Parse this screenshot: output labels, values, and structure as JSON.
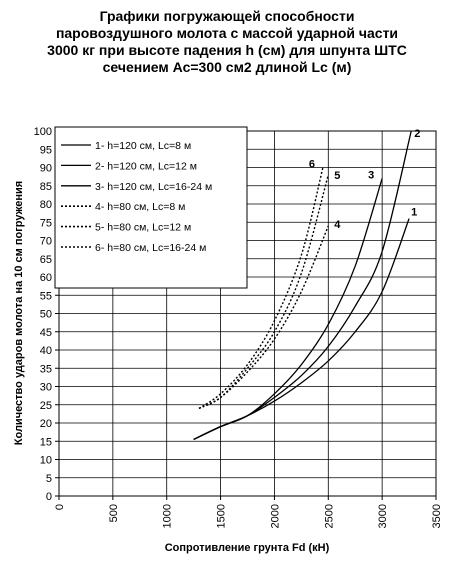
{
  "chart_data": {
    "type": "line",
    "title_lines": [
      "Графики погружающей способности",
      "паровоздушного молота с массой ударной части",
      "3000 кг при высоте падения h (см) для шпунта ШТС",
      "сечением Ас=300 см2 длиной Lc (м)"
    ],
    "xlabel": "Сопротивление грунта Fd (кН)",
    "ylabel": "Количество ударов молота на 10 см погружения",
    "xlim": [
      0,
      3500
    ],
    "ylim": [
      0,
      100
    ],
    "x_ticks": [
      "0",
      "500",
      "1000",
      "1500",
      "2000",
      "2500",
      "3000",
      "3500"
    ],
    "y_ticks": [
      "0",
      "5",
      "10",
      "15",
      "20",
      "25",
      "30",
      "35",
      "40",
      "45",
      "50",
      "55",
      "60",
      "65",
      "70",
      "75",
      "80",
      "85",
      "90",
      "95",
      "100"
    ],
    "grid": true,
    "legend_position": "top-left",
    "series": [
      {
        "name": "1- h=120 см, Lc=8 м",
        "end_label": "1",
        "style": "solid",
        "x": [
          1250,
          1500,
          1750,
          2000,
          2250,
          2500,
          2750,
          3000,
          3250
        ],
        "y": [
          15.5,
          19,
          22,
          26,
          31,
          37,
          45,
          56,
          76
        ]
      },
      {
        "name": "2- h=120 см, Lc=12 м",
        "end_label": "2",
        "style": "solid",
        "x": [
          1250,
          1500,
          1750,
          2000,
          2250,
          2500,
          2750,
          3000,
          3270
        ],
        "y": [
          15.5,
          19,
          22,
          27,
          33,
          41,
          52,
          67,
          100
        ]
      },
      {
        "name": "3- h=120 см, Lc=16-24 м",
        "end_label": "3",
        "style": "solid",
        "x": [
          1250,
          1500,
          1750,
          2000,
          2250,
          2500,
          2750,
          3000
        ],
        "y": [
          15.5,
          19,
          22,
          28,
          36,
          47,
          63,
          87
        ]
      },
      {
        "name": "4- h=80 см, Lc=8 м",
        "end_label": "4",
        "style": "dotted",
        "x": [
          1300,
          1500,
          1750,
          2000,
          2250,
          2500
        ],
        "y": [
          24,
          27,
          34,
          43,
          56,
          74
        ]
      },
      {
        "name": "5- h=80 см, Lc=12 м",
        "end_label": "5",
        "style": "dotted",
        "x": [
          1300,
          1500,
          1750,
          2000,
          2250,
          2500
        ],
        "y": [
          24,
          27,
          35,
          45,
          61,
          88
        ]
      },
      {
        "name": "6- h=80 см, Lc=16-24 м",
        "end_label": "6",
        "style": "dotted",
        "x": [
          1300,
          1500,
          1750,
          2000,
          2250,
          2450
        ],
        "y": [
          24,
          28,
          36,
          48,
          66,
          90
        ]
      }
    ]
  }
}
